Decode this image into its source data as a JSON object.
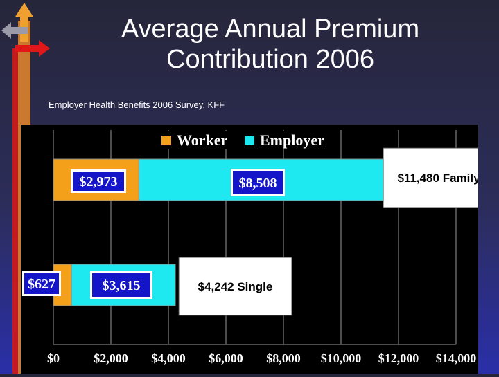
{
  "title_line1": "Average Annual Premium",
  "title_line2": "Contribution 2006",
  "source": "Employer Health Benefits 2006 Survey, KFF",
  "colors": {
    "worker": "#f5a01a",
    "employer": "#1ee8f0",
    "label_box": "#1414c8",
    "background": "#000000"
  },
  "chart_data": {
    "type": "bar",
    "orientation": "horizontal",
    "stacked": true,
    "title": "",
    "xlabel": "",
    "ylabel": "",
    "xlim": [
      0,
      14000
    ],
    "grid": true,
    "legend_position": "top",
    "x_ticks": [
      "$0",
      "$2,000",
      "$4,000",
      "$6,000",
      "$8,000",
      "$10,000",
      "$12,000",
      "$14,000"
    ],
    "tick_values": [
      0,
      2000,
      4000,
      6000,
      8000,
      10000,
      12000,
      14000
    ],
    "categories": [
      "Family",
      "Single"
    ],
    "series": [
      {
        "name": "Worker",
        "values": [
          2973,
          627
        ],
        "labels": [
          "$2,973",
          "$627"
        ]
      },
      {
        "name": "Employer",
        "values": [
          8508,
          3615
        ],
        "labels": [
          "$8,508",
          "$3,615"
        ]
      }
    ],
    "totals": [
      "$11,480 Family",
      "$4,242 Single"
    ]
  }
}
